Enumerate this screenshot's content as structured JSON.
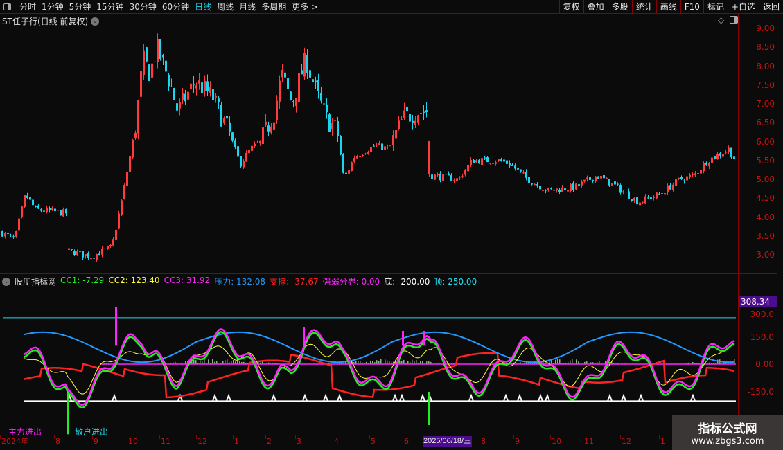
{
  "toolbar": {
    "periods": [
      "分时",
      "1分钟",
      "5分钟",
      "15分钟",
      "30分钟",
      "60分钟",
      "日线",
      "周线",
      "月线",
      "多周期",
      "更多 >"
    ],
    "active_period": "日线",
    "right_buttons": [
      "复权",
      "叠加",
      "多股",
      "统计",
      "画线",
      "F10",
      "标记",
      "+自选",
      "返回"
    ]
  },
  "main_chart": {
    "title": "ST任子行(日线 前复权)",
    "price_ticks": [
      "9.00",
      "8.50",
      "8.00",
      "7.50",
      "7.00",
      "6.50",
      "6.00",
      "5.50",
      "5.00",
      "4.50",
      "4.00",
      "3.50",
      "3.00"
    ],
    "colors": {
      "up": "#ff3b3b",
      "down": "#19d6f0",
      "axis": "#cc1111"
    }
  },
  "indicator": {
    "name": "股朋指标网",
    "values": [
      {
        "label": "CC1: -7.29",
        "color": "#22ee22"
      },
      {
        "label": "CC2: 123.40",
        "color": "#ffff33"
      },
      {
        "label": "CC3: 31.92",
        "color": "#ff22ff"
      },
      {
        "label": "压力: 132.08",
        "color": "#2299ff"
      },
      {
        "label": "支撑: -37.67",
        "color": "#ff2222"
      },
      {
        "label": "强弱分界: 0.00",
        "color": "#ff22ff"
      },
      {
        "label": "底: -200.00",
        "color": "#ffffff"
      },
      {
        "label": "顶: 250.00",
        "color": "#22ddee"
      }
    ],
    "ticks": [
      "300.0",
      "150.0",
      "0.00",
      "-150.0"
    ],
    "current_value": "308.34",
    "legend_main": "主力进出",
    "legend_retail": "散户进出"
  },
  "date_axis": {
    "labels": [
      "2024年",
      "8",
      "9",
      "10",
      "11",
      "12",
      "1",
      "2",
      "3",
      "4",
      "5",
      "6",
      "8",
      "9",
      "10",
      "11",
      "12",
      "1"
    ],
    "cursor_date": "2025/06/18/三"
  },
  "watermark": {
    "title": "指标公式网",
    "url": "www.zbgs3.com"
  }
}
